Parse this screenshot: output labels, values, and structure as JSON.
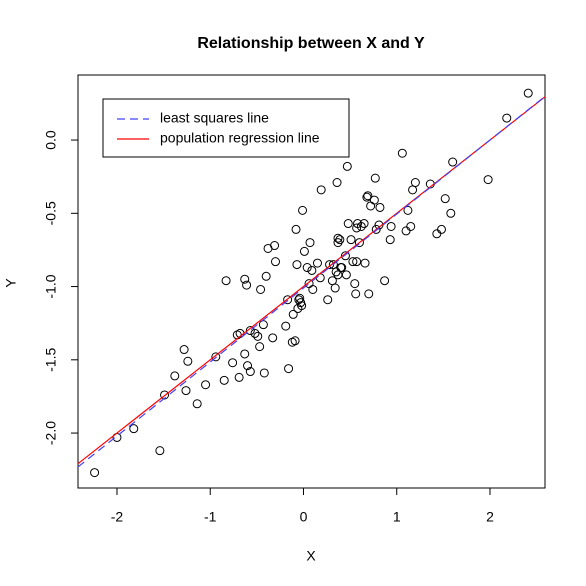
{
  "chart_data": {
    "type": "scatter",
    "title": "Relationship between X and Y",
    "x_label": "X",
    "y_label": "Y",
    "xlim": [
      -2.418,
      2.59
    ],
    "ylim": [
      -2.375,
      0.444
    ],
    "xticks": [
      -2,
      -1,
      0,
      1,
      2
    ],
    "yticks": [
      {
        "value": -2,
        "label": "-2.0"
      },
      -1.5,
      {
        "value": -1,
        "label": "-1.0"
      },
      -0.5,
      {
        "value": 0,
        "label": "0.0"
      }
    ],
    "point_color": "#000000",
    "x": [
      -2.24,
      -2.0,
      -1.82,
      -1.54,
      -1.49,
      -1.38,
      -1.28,
      -1.26,
      -1.24,
      -1.14,
      -1.05,
      -0.94,
      -0.85,
      -0.83,
      -0.76,
      -0.71,
      -0.69,
      -0.68,
      -0.63,
      -0.63,
      -0.61,
      -0.6,
      -0.57,
      -0.57,
      -0.52,
      -0.49,
      -0.47,
      -0.46,
      -0.43,
      -0.42,
      -0.4,
      -0.38,
      -0.33,
      -0.31,
      -0.3,
      -0.19,
      -0.17,
      -0.16,
      -0.12,
      -0.11,
      -0.09,
      -0.08,
      -0.07,
      -0.06,
      -0.05,
      -0.04,
      -0.03,
      -0.02,
      -0.01,
      0.01,
      0.04,
      0.06,
      0.07,
      0.09,
      0.1,
      0.15,
      0.18,
      0.19,
      0.26,
      0.28,
      0.31,
      0.32,
      0.34,
      0.35,
      0.36,
      0.37,
      0.37,
      0.37,
      0.39,
      0.4,
      0.41,
      0.45,
      0.46,
      0.47,
      0.48,
      0.51,
      0.53,
      0.55,
      0.56,
      0.57,
      0.57,
      0.58,
      0.6,
      0.62,
      0.65,
      0.66,
      0.68,
      0.69,
      0.7,
      0.72,
      0.76,
      0.77,
      0.78,
      0.81,
      0.82,
      0.87,
      0.93,
      0.94,
      1.06,
      1.1,
      1.12,
      1.15,
      1.17,
      1.2,
      1.36,
      1.43,
      1.48,
      1.52,
      1.58,
      1.6,
      1.98,
      2.18,
      2.41
    ],
    "y": [
      -2.27,
      -2.03,
      -1.97,
      -2.12,
      -1.74,
      -1.61,
      -1.43,
      -1.71,
      -1.51,
      -1.8,
      -1.67,
      -1.48,
      -1.64,
      -0.96,
      -1.52,
      -1.33,
      -1.62,
      -1.32,
      -1.46,
      -0.95,
      -0.99,
      -1.54,
      -1.3,
      -1.58,
      -1.32,
      -1.34,
      -1.41,
      -1.02,
      -1.26,
      -1.59,
      -0.93,
      -0.74,
      -1.35,
      -0.72,
      -0.83,
      -1.27,
      -1.09,
      -1.56,
      -1.38,
      -1.19,
      -1.37,
      -0.61,
      -0.85,
      -1.15,
      -1.09,
      -1.08,
      -1.11,
      -1.13,
      -0.48,
      -0.76,
      -0.87,
      -0.98,
      -0.7,
      -0.89,
      -1.02,
      -0.84,
      -0.94,
      -0.34,
      -1.09,
      -0.85,
      -0.96,
      -0.85,
      -1.01,
      -0.9,
      -0.29,
      -0.7,
      -0.92,
      -0.67,
      -0.68,
      -0.87,
      -0.87,
      -0.79,
      -0.92,
      -0.18,
      -0.57,
      -0.68,
      -0.83,
      -0.98,
      -1.05,
      -0.6,
      -0.83,
      -0.57,
      -0.7,
      -0.59,
      -0.57,
      -0.84,
      -0.39,
      -0.38,
      -1.05,
      -0.45,
      -0.41,
      -0.26,
      -0.61,
      -0.58,
      -0.46,
      -0.96,
      -0.68,
      -0.59,
      -0.09,
      -0.62,
      -0.48,
      -0.59,
      -0.34,
      -0.29,
      -0.3,
      -0.64,
      -0.61,
      -0.4,
      -0.5,
      -0.15,
      -0.27,
      0.15,
      0.32
    ],
    "lines": [
      {
        "name": "least squares line",
        "color": "#4040ff",
        "dashed": true,
        "intercept": -1.01,
        "slope": 0.505
      },
      {
        "name": "population regression line",
        "color": "#ff0000",
        "dashed": false,
        "intercept": -1,
        "slope": 0.5
      }
    ],
    "legend": "top-left"
  }
}
